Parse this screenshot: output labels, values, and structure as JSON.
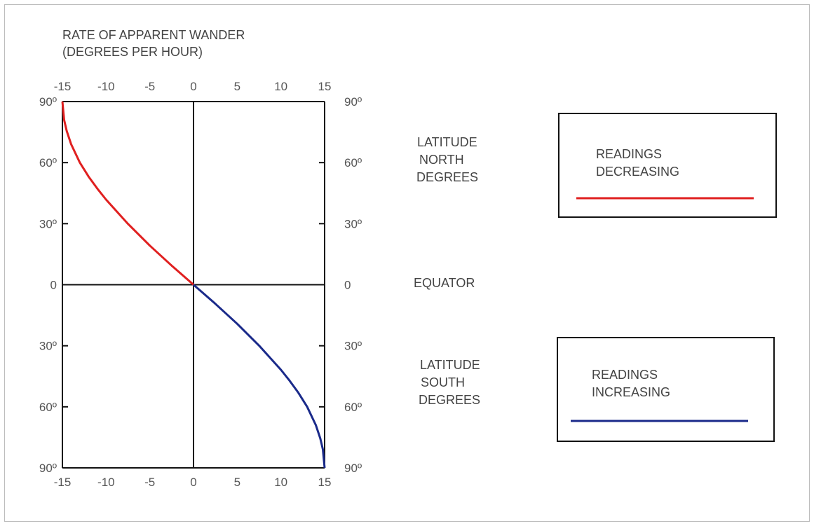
{
  "chart_data": {
    "type": "line",
    "title_lines": [
      "RATE OF APPARENT WANDER",
      "(DEGREES PER HOUR)"
    ],
    "x_ticks": [
      -15,
      -10,
      -5,
      0,
      5,
      10,
      15
    ],
    "xlim": [
      -15,
      15
    ],
    "y_ticks": [
      {
        "value": 90,
        "label": "90º"
      },
      {
        "value": 60,
        "label": "60º"
      },
      {
        "value": 30,
        "label": "30º"
      },
      {
        "value": 0,
        "label": "0"
      },
      {
        "value": -30,
        "label": "30º"
      },
      {
        "value": -60,
        "label": "60º"
      },
      {
        "value": -90,
        "label": "90º"
      }
    ],
    "ylim": [
      -90,
      90
    ],
    "side_labels": {
      "north": [
        "LATITUDE",
        "NORTH",
        "DEGREES"
      ],
      "equator": "EQUATOR",
      "south": [
        "LATITUDE",
        "SOUTH",
        "DEGREES"
      ]
    },
    "series": [
      {
        "name": "READINGS DECREASING",
        "legend_lines": [
          "READINGS",
          "DECREASING"
        ],
        "color": "#e02020",
        "points": [
          {
            "x": 0,
            "y": 0
          },
          {
            "x": -2.5,
            "y": 9.4
          },
          {
            "x": -5,
            "y": 19.2
          },
          {
            "x": -7.5,
            "y": 29.9
          },
          {
            "x": -10,
            "y": 41.8
          },
          {
            "x": -11,
            "y": 47.2
          },
          {
            "x": -12,
            "y": 53.1
          },
          {
            "x": -13,
            "y": 60
          },
          {
            "x": -14,
            "y": 69
          },
          {
            "x": -14.5,
            "y": 75.5
          },
          {
            "x": -14.8,
            "y": 80.9
          },
          {
            "x": -15,
            "y": 90
          }
        ]
      },
      {
        "name": "READINGS INCREASING",
        "legend_lines": [
          "READINGS",
          "INCREASING"
        ],
        "color": "#1a2a8a",
        "points": [
          {
            "x": 0,
            "y": 0
          },
          {
            "x": 2.5,
            "y": -9.4
          },
          {
            "x": 5,
            "y": -19.2
          },
          {
            "x": 7.5,
            "y": -29.9
          },
          {
            "x": 10,
            "y": -41.8
          },
          {
            "x": 11,
            "y": -47.2
          },
          {
            "x": 12,
            "y": -53.1
          },
          {
            "x": 13,
            "y": -60
          },
          {
            "x": 14,
            "y": -69
          },
          {
            "x": 14.5,
            "y": -75.5
          },
          {
            "x": 14.8,
            "y": -80.9
          },
          {
            "x": 15,
            "y": -90
          }
        ]
      }
    ],
    "grid": false,
    "legend": "right"
  }
}
